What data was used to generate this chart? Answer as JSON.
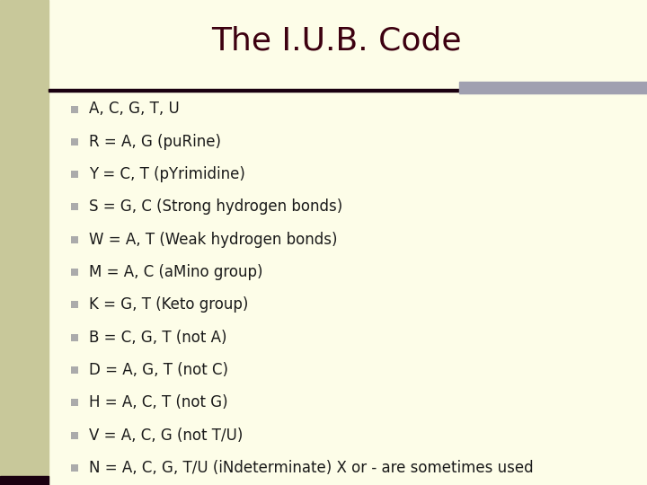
{
  "title": "The I.U.B. Code",
  "title_color": "#3D0010",
  "title_fontsize": 26,
  "background_color": "#FDFDE8",
  "left_bar_color": "#C8C89A",
  "left_bar_width": 0.075,
  "top_bar_color": "#A0A0B0",
  "bullet_color": "#ABABAB",
  "text_color": "#1a1a1a",
  "line_color": "#1a0010",
  "bullet_items": [
    "A, C, G, T, U",
    "R = A, G (puRine)",
    "Y = C, T (pYrimidine)",
    "S = G, C (Strong hydrogen bonds)",
    "W = A, T (Weak hydrogen bonds)",
    "M = A, C (aMino group)",
    "K = G, T (Keto group)",
    "B = C, G, T (not A)",
    "D = A, G, T (not C)",
    "H = A, C, T (not G)",
    "V = A, C, G (not T/U)",
    "N = A, C, G, T/U (iNdeterminate) X or - are sometimes used"
  ],
  "text_fontsize": 12.0,
  "figsize": [
    7.2,
    5.4
  ],
  "dpi": 100
}
